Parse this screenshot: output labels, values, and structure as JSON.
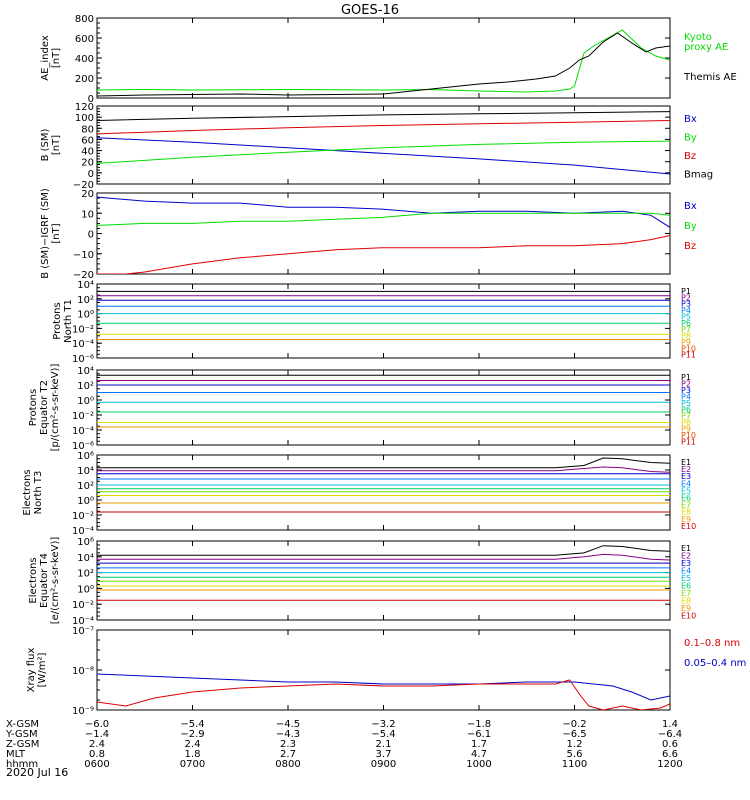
{
  "title": "GOES-16",
  "date_label": "2020 Jul 16",
  "colors": {
    "black": "#000000",
    "green": "#00dd00",
    "blue": "#0000cc",
    "red": "#dd0000"
  },
  "chart_data": [
    {
      "id": "ae",
      "type": "line",
      "ylabel": [
        "AE_index",
        "[nT]"
      ],
      "ylim": [
        0,
        800
      ],
      "yticks": [
        "800",
        "600",
        "400",
        "200",
        "0"
      ],
      "legend": [
        {
          "label": "Kyoto",
          "color": "#00dd00"
        },
        {
          "label": "proxy AE",
          "color": "#00dd00"
        },
        {
          "label": "Themis AE",
          "color": "#000000"
        }
      ],
      "series": [
        {
          "name": "Kyoto proxy AE",
          "color": "#00dd00",
          "x": [
            6.0,
            6.5,
            7.0,
            7.5,
            8.0,
            8.5,
            9.0,
            9.5,
            10.0,
            10.5,
            10.8,
            10.95,
            11.0,
            11.1,
            11.2,
            11.35,
            11.5,
            11.7,
            11.85,
            12.0
          ],
          "y": [
            80,
            85,
            80,
            82,
            85,
            82,
            80,
            85,
            70,
            60,
            70,
            90,
            120,
            450,
            520,
            600,
            680,
            500,
            420,
            380
          ]
        },
        {
          "name": "Themis AE",
          "color": "#000000",
          "x": [
            6.0,
            6.5,
            7.0,
            7.5,
            8.0,
            8.5,
            9.0,
            9.3,
            9.5,
            9.8,
            10.0,
            10.3,
            10.6,
            10.8,
            10.95,
            11.05,
            11.15,
            11.3,
            11.45,
            11.6,
            11.75,
            11.85,
            12.0
          ],
          "y": [
            20,
            30,
            35,
            40,
            30,
            35,
            40,
            70,
            90,
            120,
            140,
            160,
            190,
            220,
            300,
            380,
            420,
            560,
            650,
            550,
            460,
            500,
            520
          ]
        }
      ]
    },
    {
      "id": "bsm",
      "type": "line",
      "ylabel": [
        "B (SM)",
        "[nT]"
      ],
      "ylim": [
        -20,
        120
      ],
      "yticks": [
        "120",
        "100",
        "80",
        "60",
        "40",
        "20",
        "0",
        "−20"
      ],
      "legend": [
        {
          "label": "Bx",
          "color": "#0000cc"
        },
        {
          "label": "By",
          "color": "#00dd00"
        },
        {
          "label": "Bz",
          "color": "#dd0000"
        },
        {
          "label": "Bmag",
          "color": "#000000"
        }
      ],
      "series": [
        {
          "name": "Bmag",
          "color": "#000000",
          "x": [
            6,
            7,
            8,
            9,
            10,
            11,
            12
          ],
          "y": [
            94,
            98,
            101,
            104,
            106,
            108,
            110
          ]
        },
        {
          "name": "Bz",
          "color": "#dd0000",
          "x": [
            6,
            7,
            8,
            9,
            10,
            11,
            12
          ],
          "y": [
            70,
            76,
            81,
            85,
            88,
            91,
            94
          ]
        },
        {
          "name": "Bx",
          "color": "#0000cc",
          "x": [
            6,
            7,
            8,
            9,
            10,
            11,
            12
          ],
          "y": [
            63,
            55,
            45,
            35,
            25,
            14,
            -2
          ]
        },
        {
          "name": "By",
          "color": "#00dd00",
          "x": [
            6,
            7,
            8,
            9,
            10,
            11,
            12
          ],
          "y": [
            17,
            28,
            37,
            45,
            51,
            55,
            57
          ]
        }
      ]
    },
    {
      "id": "bigrf",
      "type": "line",
      "ylabel": [
        "B (SM)−IGRF (SM)",
        "[nT]"
      ],
      "ylim": [
        -20,
        20
      ],
      "yticks": [
        "20",
        "10",
        "0",
        "−10",
        "−20"
      ],
      "legend": [
        {
          "label": "Bx",
          "color": "#0000cc"
        },
        {
          "label": "By",
          "color": "#00dd00"
        },
        {
          "label": "Bz",
          "color": "#dd0000"
        }
      ],
      "series": [
        {
          "name": "Bx",
          "color": "#0000cc",
          "x": [
            6,
            6.5,
            7,
            7.5,
            8,
            8.5,
            9,
            9.5,
            10,
            10.5,
            11,
            11.5,
            11.8,
            12
          ],
          "y": [
            18,
            16,
            15,
            15,
            13,
            13,
            12,
            10,
            11,
            11,
            10,
            11,
            9,
            3
          ]
        },
        {
          "name": "By",
          "color": "#00dd00",
          "x": [
            6,
            6.5,
            7,
            7.5,
            8,
            8.5,
            9,
            9.5,
            10,
            10.5,
            11,
            11.5,
            11.8,
            12
          ],
          "y": [
            4,
            5,
            5,
            6,
            6,
            7,
            8,
            10,
            10,
            10,
            10,
            10,
            10,
            9
          ]
        },
        {
          "name": "Bz",
          "color": "#dd0000",
          "x": [
            6,
            6.3,
            6.5,
            7,
            7.5,
            8,
            8.5,
            9,
            9.5,
            10,
            10.5,
            11,
            11.5,
            11.8,
            12
          ],
          "y": [
            -20,
            -20,
            -19,
            -15,
            -12,
            -10,
            -8,
            -7,
            -7,
            -7,
            -6,
            -6,
            -5,
            -3,
            -1
          ]
        }
      ]
    },
    {
      "id": "pn",
      "type": "line",
      "log": true,
      "ylabel": [
        "Protons",
        "North T1"
      ],
      "ylim": [
        -6,
        4
      ],
      "yticks": [
        "10⁴",
        "10²",
        "10⁰",
        "10⁻²",
        "10⁻⁴",
        "10⁻⁶"
      ],
      "legend": [
        {
          "label": "P1",
          "color": "#000000"
        },
        {
          "label": "P2",
          "color": "#880088"
        },
        {
          "label": "P3",
          "color": "#0000cc"
        },
        {
          "label": "P4",
          "color": "#0077ff"
        },
        {
          "label": "P5",
          "color": "#00bbdd"
        },
        {
          "label": "P6",
          "color": "#00cc66"
        },
        {
          "label": "P7",
          "color": "#77dd00"
        },
        {
          "label": "P8",
          "color": "#dddd00"
        },
        {
          "label": "P9",
          "color": "#ee9900"
        },
        {
          "label": "P10",
          "color": "#ee4400"
        },
        {
          "label": "P11",
          "color": "#cc0000"
        }
      ],
      "levels": [
        {
          "color": "#000000",
          "y": 3.0
        },
        {
          "color": "#880088",
          "y": 2.4
        },
        {
          "color": "#0000cc",
          "y": 1.8
        },
        {
          "color": "#0077ff",
          "y": 1.0
        },
        {
          "color": "#00bbdd",
          "y": 0.0
        },
        {
          "color": "#00cc66",
          "y": -1.3
        },
        {
          "color": "#dddd00",
          "y": -2.8
        },
        {
          "color": "#ee9900",
          "y": -3.5
        }
      ]
    },
    {
      "id": "pe",
      "type": "line",
      "log": true,
      "ylabel": [
        "Protons",
        "Equator T2",
        "[p/(cm²-s-sr-keV)]"
      ],
      "ylim": [
        -6,
        4
      ],
      "yticks": [
        "10⁴",
        "10²",
        "10⁰",
        "10⁻²",
        "10⁻⁴",
        "10⁻⁶"
      ],
      "legend": [
        {
          "label": "P1",
          "color": "#000000"
        },
        {
          "label": "P2",
          "color": "#880088"
        },
        {
          "label": "P3",
          "color": "#0000cc"
        },
        {
          "label": "P4",
          "color": "#0077ff"
        },
        {
          "label": "P5",
          "color": "#00bbdd"
        },
        {
          "label": "P6",
          "color": "#00cc66"
        },
        {
          "label": "P7",
          "color": "#77dd00"
        },
        {
          "label": "P8",
          "color": "#dddd00"
        },
        {
          "label": "P9",
          "color": "#ee9900"
        },
        {
          "label": "P10",
          "color": "#ee4400"
        },
        {
          "label": "P11",
          "color": "#cc0000"
        }
      ],
      "levels": [
        {
          "color": "#000000",
          "y": 3.3
        },
        {
          "color": "#880088",
          "y": 2.6
        },
        {
          "color": "#0000cc",
          "y": 2.0
        },
        {
          "color": "#0077ff",
          "y": 1.0
        },
        {
          "color": "#00bbdd",
          "y": -0.3
        },
        {
          "color": "#00cc66",
          "y": -1.6
        },
        {
          "color": "#dddd00",
          "y": -3.0
        },
        {
          "color": "#ee9900",
          "y": -3.6
        }
      ]
    },
    {
      "id": "en",
      "type": "line",
      "log": true,
      "ylabel": [
        "Electrons",
        "North T3"
      ],
      "ylim": [
        -4,
        6
      ],
      "yticks": [
        "10⁶",
        "10⁴",
        "10²",
        "10⁰",
        "10⁻²",
        "10⁻⁴"
      ],
      "legend": [
        {
          "label": "E1",
          "color": "#000000"
        },
        {
          "label": "E2",
          "color": "#880088"
        },
        {
          "label": "E3",
          "color": "#0000cc"
        },
        {
          "label": "E4",
          "color": "#0077ff"
        },
        {
          "label": "E5",
          "color": "#00bbdd"
        },
        {
          "label": "E6",
          "color": "#00cc66"
        },
        {
          "label": "E7",
          "color": "#77dd00"
        },
        {
          "label": "E8",
          "color": "#dddd00"
        },
        {
          "label": "E9",
          "color": "#ee9900"
        },
        {
          "label": "E10",
          "color": "#cc0000"
        }
      ],
      "levels": [
        {
          "color": "#000000",
          "y": 4.3,
          "peak": 5.6
        },
        {
          "color": "#880088",
          "y": 3.9,
          "peak": 4.4
        },
        {
          "color": "#0000cc",
          "y": 3.5
        },
        {
          "color": "#0077ff",
          "y": 2.8
        },
        {
          "color": "#00bbdd",
          "y": 2.0
        },
        {
          "color": "#00cc66",
          "y": 1.5
        },
        {
          "color": "#77dd00",
          "y": 1.1
        },
        {
          "color": "#dddd00",
          "y": 0.6
        },
        {
          "color": "#ee9900",
          "y": -0.4
        },
        {
          "color": "#cc0000",
          "y": -1.6
        }
      ]
    },
    {
      "id": "ee",
      "type": "line",
      "log": true,
      "ylabel": [
        "Electrons",
        "Equator T4",
        "[e/(cm²-s-sr-keV)]"
      ],
      "ylim": [
        -4,
        6
      ],
      "yticks": [
        "10⁶",
        "10⁴",
        "10²",
        "10⁰",
        "10⁻²",
        "10⁻⁴"
      ],
      "legend": [
        {
          "label": "E1",
          "color": "#000000"
        },
        {
          "label": "E2",
          "color": "#880088"
        },
        {
          "label": "E3",
          "color": "#0000cc"
        },
        {
          "label": "E4",
          "color": "#0077ff"
        },
        {
          "label": "E5",
          "color": "#00bbdd"
        },
        {
          "label": "E6",
          "color": "#00cc66"
        },
        {
          "label": "E7",
          "color": "#77dd00"
        },
        {
          "label": "E8",
          "color": "#dddd00"
        },
        {
          "label": "E9",
          "color": "#ee9900"
        },
        {
          "label": "E10",
          "color": "#cc0000"
        }
      ],
      "levels": [
        {
          "color": "#000000",
          "y": 4.2,
          "peak": 5.4
        },
        {
          "color": "#880088",
          "y": 3.7,
          "peak": 4.3
        },
        {
          "color": "#0000cc",
          "y": 3.2
        },
        {
          "color": "#0077ff",
          "y": 2.6
        },
        {
          "color": "#00bbdd",
          "y": 2.0
        },
        {
          "color": "#00cc66",
          "y": 1.4
        },
        {
          "color": "#77dd00",
          "y": 0.9
        },
        {
          "color": "#dddd00",
          "y": 0.3
        },
        {
          "color": "#ee9900",
          "y": -0.2
        },
        {
          "color": "#cc0000",
          "y": -1.5
        }
      ]
    },
    {
      "id": "xray",
      "type": "line",
      "log": true,
      "ylabel": [
        "Xray flux",
        "[W/m²]"
      ],
      "ylim": [
        -9,
        -7
      ],
      "yticks": [
        "10⁻⁷",
        "10⁻⁸",
        "10⁻⁹"
      ],
      "legend": [
        {
          "label": "0.1–0.8 nm",
          "color": "#dd0000"
        },
        {
          "label": "0.05–0.4 nm",
          "color": "#0000cc"
        }
      ],
      "series": [
        {
          "name": "0.05–0.4 nm",
          "color": "#0000cc",
          "x": [
            6,
            6.5,
            7,
            7.5,
            8,
            8.5,
            9,
            9.5,
            10,
            10.5,
            11,
            11.2,
            11.4,
            11.6,
            11.8,
            12
          ],
          "y": [
            -8.1,
            -8.15,
            -8.2,
            -8.25,
            -8.3,
            -8.3,
            -8.35,
            -8.35,
            -8.35,
            -8.3,
            -8.3,
            -8.35,
            -8.4,
            -8.55,
            -8.75,
            -8.65
          ]
        },
        {
          "name": "0.1–0.8 nm",
          "color": "#dd0000",
          "x": [
            6,
            6.3,
            6.6,
            7,
            7.5,
            8,
            8.5,
            9,
            9.5,
            10,
            10.5,
            10.8,
            10.95,
            11.05,
            11.15,
            11.3,
            11.5,
            11.7,
            11.9,
            12
          ],
          "y": [
            -8.8,
            -8.9,
            -8.7,
            -8.55,
            -8.45,
            -8.4,
            -8.35,
            -8.4,
            -8.4,
            -8.35,
            -8.35,
            -8.35,
            -8.25,
            -8.6,
            -8.9,
            -9.0,
            -8.9,
            -9.0,
            -8.95,
            -8.85
          ]
        }
      ]
    }
  ],
  "xaxis": {
    "xlim": [
      6,
      12
    ],
    "tick_x": [
      6,
      7,
      8,
      9,
      10,
      11,
      12
    ],
    "rows": [
      {
        "label": "X-GSM",
        "values": [
          "−6.0",
          "−5.4",
          "−4.5",
          "−3.2",
          "−1.8",
          "−0.2",
          "1.4"
        ]
      },
      {
        "label": "Y-GSM",
        "values": [
          "−1.4",
          "−2.9",
          "−4.3",
          "−5.4",
          "−6.1",
          "−6.5",
          "−6.4"
        ]
      },
      {
        "label": "Z-GSM",
        "values": [
          "2.4",
          "2.4",
          "2.3",
          "2.1",
          "1.7",
          "1.2",
          "0.6"
        ]
      },
      {
        "label": "MLT",
        "values": [
          "0.8",
          "1.8",
          "2.7",
          "3.7",
          "4.7",
          "5.6",
          "6.6"
        ]
      },
      {
        "label": "hhmm",
        "values": [
          "0600",
          "0700",
          "0800",
          "0900",
          "1000",
          "1100",
          "1200"
        ]
      }
    ]
  }
}
